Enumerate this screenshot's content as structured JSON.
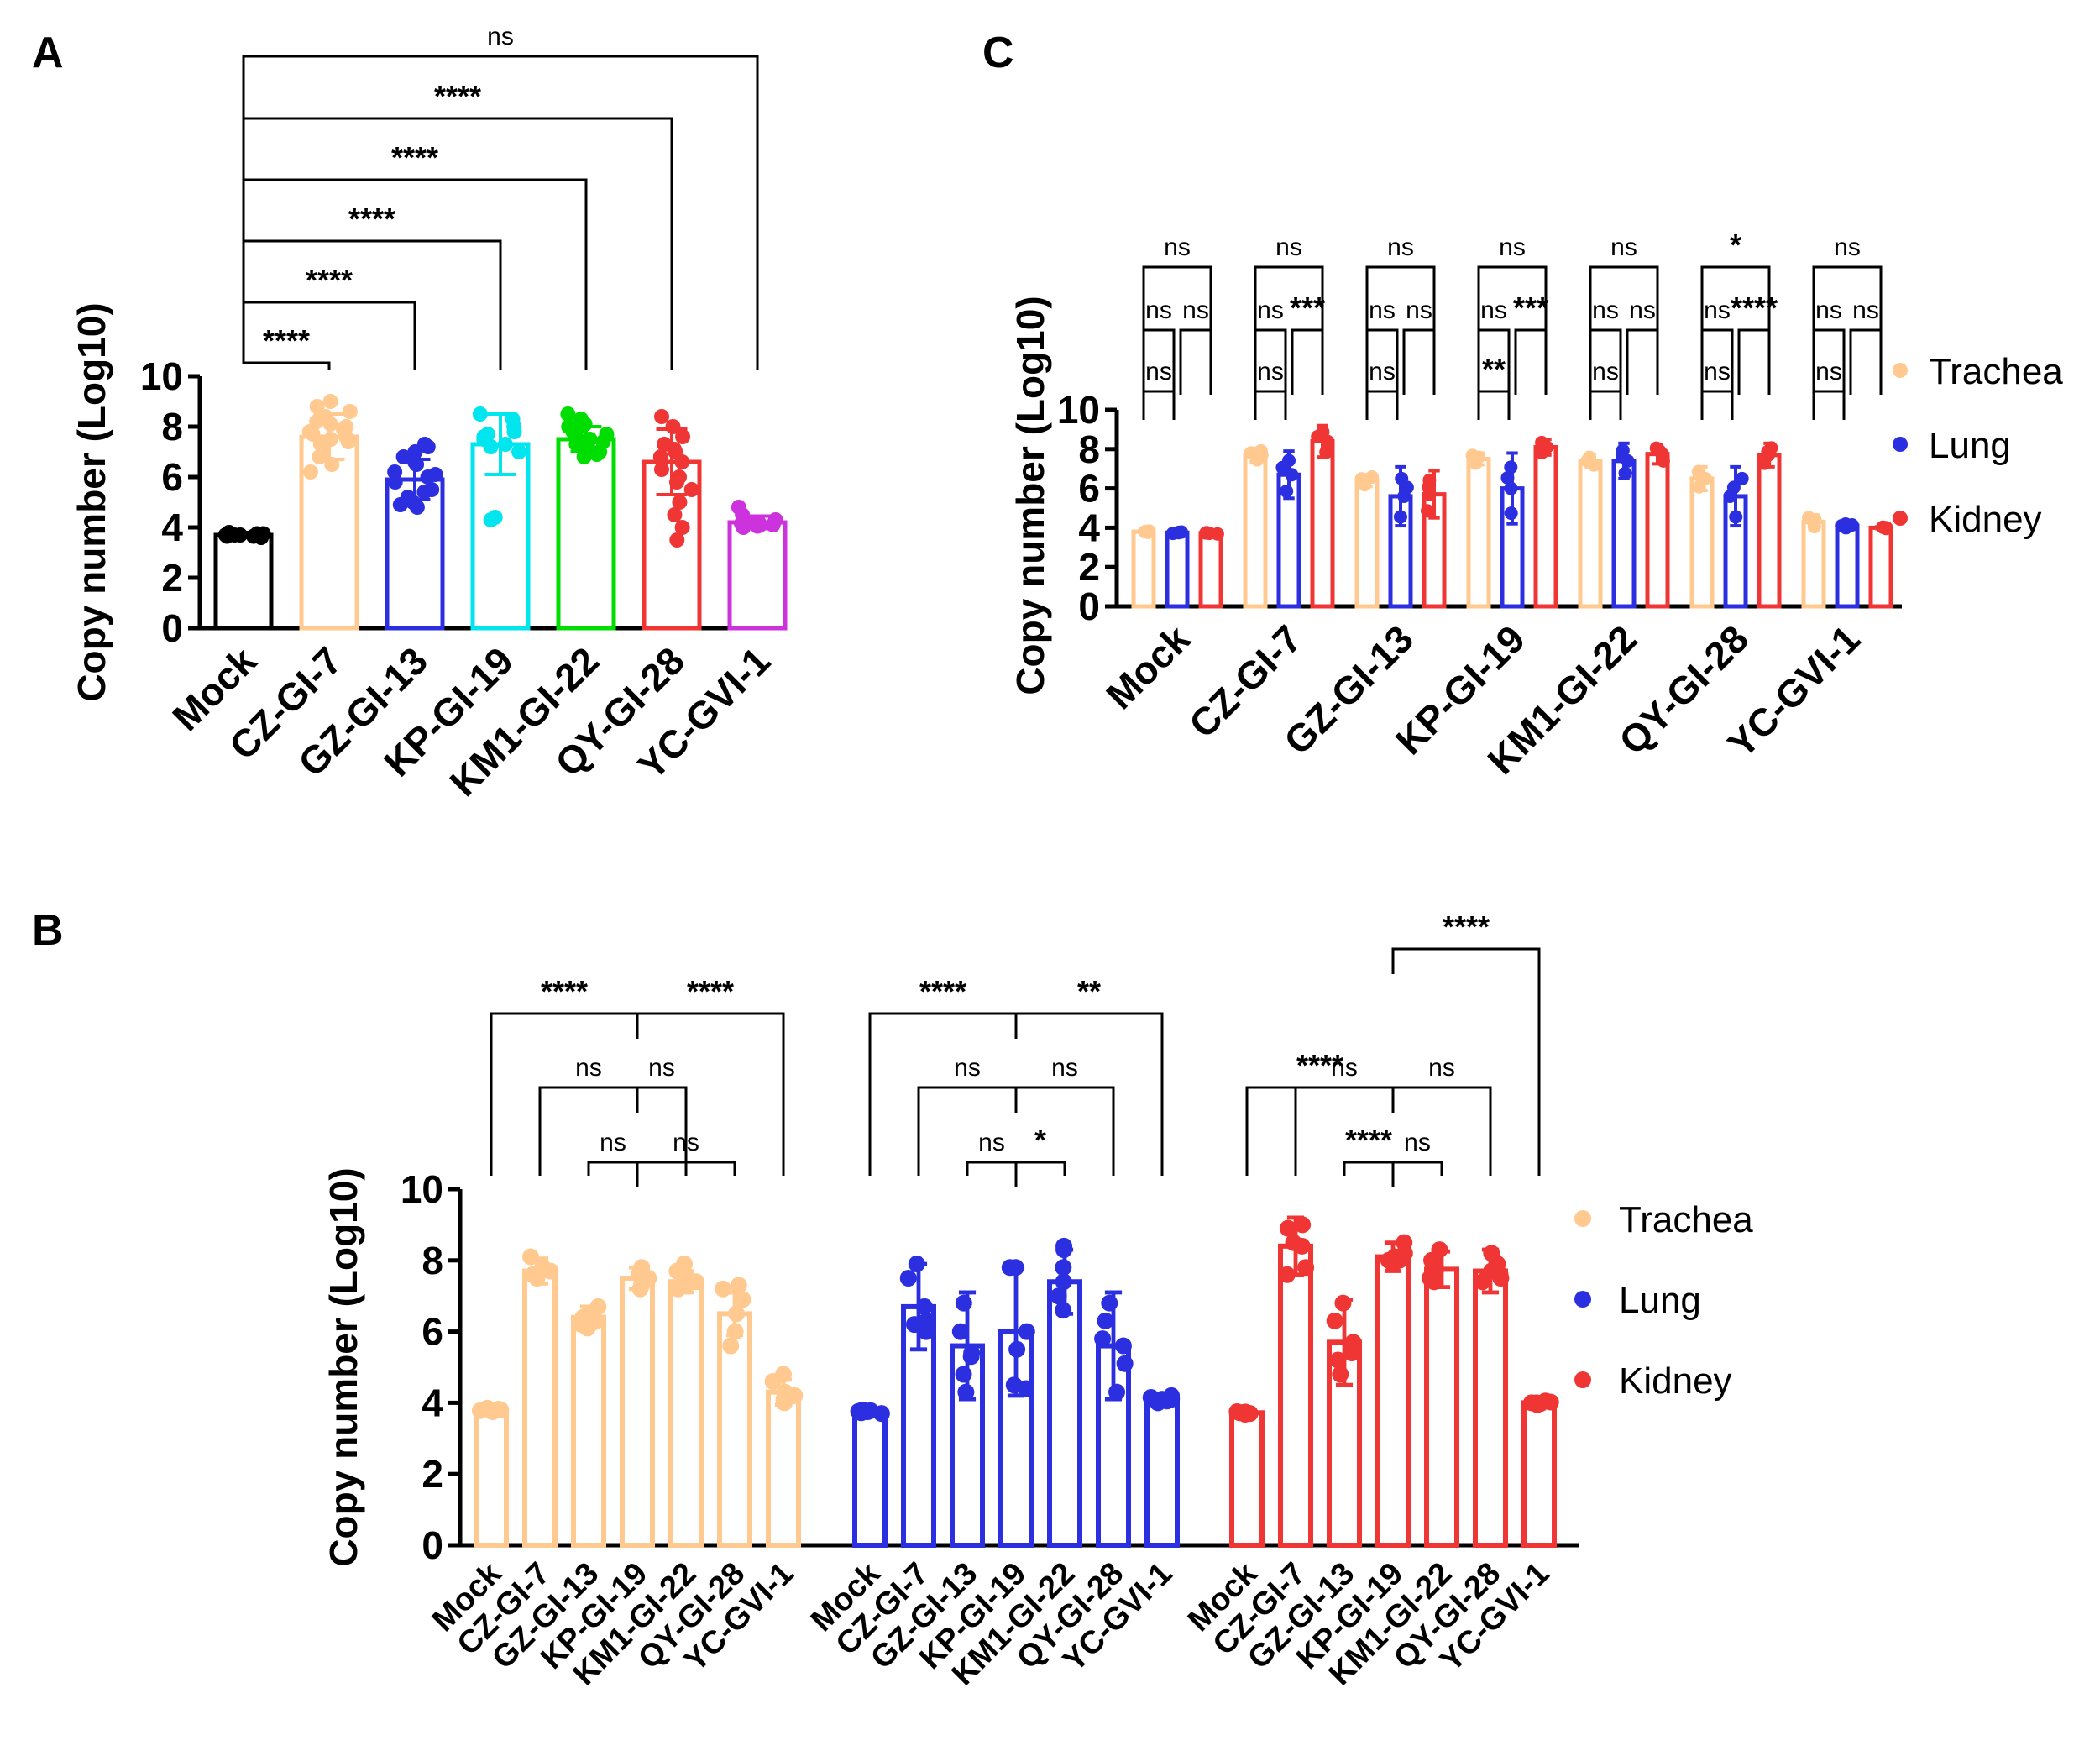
{
  "colors": {
    "Mock": "#000000",
    "CZ-GI-7": "#FFC990",
    "GZ-GI-13": "#2B2FE0",
    "KP-GI-19": "#00E5EE",
    "KM1-GI-22": "#00DD00",
    "QY-GI-28": "#F03535",
    "YC-GVI-1": "#CC33DD",
    "Trachea": "#FFC990",
    "Lung": "#2B2FE0",
    "Kidney": "#F03535"
  },
  "chart_data": [
    {
      "panel": "A",
      "type": "bar",
      "ylabel": "Copy number (Log10)",
      "ylim": [
        0,
        10
      ],
      "yticks": [
        0,
        2,
        4,
        6,
        8,
        10
      ],
      "categories": [
        "Mock",
        "CZ-GI-7",
        "GZ-GI-13",
        "KP-GI-19",
        "KM1-GI-22",
        "QY-GI-28",
        "YC-GVI-1"
      ],
      "values": [
        3.7,
        7.6,
        5.9,
        7.3,
        7.5,
        6.6,
        4.2
      ],
      "errors": [
        0.1,
        0.9,
        0.8,
        1.2,
        0.5,
        1.3,
        0.25
      ],
      "points": [
        [
          3.6,
          3.65,
          3.7,
          3.7,
          3.75,
          3.8,
          3.7,
          3.65,
          3.75,
          3.7
        ],
        [
          6.2,
          6.5,
          7.0,
          7.3,
          7.5,
          7.7,
          7.8,
          8.0,
          8.2,
          8.4,
          8.6,
          8.8,
          9.0,
          7.4,
          7.6,
          6.8,
          8.1,
          7.9
        ],
        [
          4.8,
          5.0,
          5.2,
          5.5,
          5.8,
          6.0,
          6.2,
          6.5,
          6.8,
          7.0,
          7.2,
          5.4,
          6.1,
          6.6,
          7.3,
          4.9
        ],
        [
          4.4,
          4.3,
          7.0,
          7.3,
          7.5,
          7.7,
          8.0,
          8.3,
          8.5,
          7.6,
          7.2,
          7.8
        ],
        [
          6.8,
          7.0,
          7.2,
          7.4,
          7.6,
          7.8,
          8.0,
          8.3,
          8.5,
          7.5,
          7.3,
          7.7,
          7.9,
          8.1,
          7.1,
          6.9
        ],
        [
          3.5,
          4.0,
          4.5,
          5.0,
          5.5,
          6.0,
          6.3,
          6.6,
          7.0,
          7.3,
          7.6,
          8.0,
          8.4,
          6.8,
          7.1,
          5.8
        ],
        [
          4.0,
          4.05,
          4.1,
          4.15,
          4.2,
          4.3,
          4.5,
          4.8,
          4.1,
          4.2
        ]
      ],
      "comparisons": [
        {
          "from": 0,
          "to": 1,
          "label": "****"
        },
        {
          "from": 0,
          "to": 2,
          "label": "****"
        },
        {
          "from": 0,
          "to": 3,
          "label": "****"
        },
        {
          "from": 0,
          "to": 4,
          "label": "****"
        },
        {
          "from": 0,
          "to": 5,
          "label": "****"
        },
        {
          "from": 0,
          "to": 6,
          "label": "ns"
        }
      ]
    },
    {
      "panel": "B",
      "type": "bar",
      "ylabel": "Copy number (Log10)",
      "ylim": [
        0,
        10
      ],
      "yticks": [
        0,
        2,
        4,
        6,
        8,
        10
      ],
      "categories": [
        "Mock",
        "CZ-GI-7",
        "GZ-GI-13",
        "KP-GI-19",
        "KM1-GI-22",
        "QY-GI-28",
        "YC-GVI-1"
      ],
      "series": [
        {
          "name": "Trachea",
          "values": [
            3.8,
            7.7,
            6.4,
            7.5,
            7.4,
            6.5,
            4.3
          ],
          "errors": [
            0.05,
            0.35,
            0.3,
            0.3,
            0.3,
            0.6,
            0.35
          ],
          "points": [
            [
              3.75,
              3.8,
              3.85,
              3.8,
              3.78,
              3.82
            ],
            [
              7.5,
              7.6,
              7.7,
              7.8,
              8.1,
              7.6
            ],
            [
              6.1,
              6.3,
              6.5,
              6.7,
              6.4,
              6.2
            ],
            [
              7.2,
              7.4,
              7.6,
              7.8,
              7.5,
              7.3
            ],
            [
              7.2,
              7.3,
              7.5,
              7.7,
              7.9,
              7.4
            ],
            [
              5.6,
              6.0,
              6.5,
              6.9,
              7.2,
              7.3
            ],
            [
              4.0,
              4.1,
              4.3,
              4.6,
              4.8,
              4.2
            ]
          ]
        },
        {
          "name": "Lung",
          "values": [
            3.75,
            6.7,
            5.6,
            6.0,
            7.4,
            5.6,
            4.1
          ],
          "errors": [
            0.05,
            1.2,
            1.5,
            1.8,
            0.9,
            1.5,
            0.15
          ],
          "points": [
            [
              3.7,
              3.75,
              3.8,
              3.72,
              3.76,
              3.78
            ],
            [
              6.0,
              6.3,
              6.7,
              7.5,
              7.9,
              6.2
            ],
            [
              4.3,
              4.8,
              5.3,
              6.0,
              6.8,
              5.4
            ],
            [
              4.4,
              4.5,
              6.0,
              7.8,
              7.8,
              5.5
            ],
            [
              6.6,
              7.0,
              7.4,
              7.8,
              8.4,
              8.3
            ],
            [
              4.3,
              5.1,
              5.6,
              6.3,
              6.8,
              5.8
            ],
            [
              4.0,
              4.05,
              4.1,
              4.15,
              4.2,
              4.1
            ]
          ]
        },
        {
          "name": "Kidney",
          "values": [
            3.72,
            8.4,
            5.7,
            8.1,
            7.75,
            7.7,
            4.0
          ],
          "errors": [
            0.05,
            0.8,
            1.2,
            0.4,
            0.5,
            0.6,
            0.05
          ],
          "points": [
            [
              3.68,
              3.7,
              3.75,
              3.72,
              3.74,
              3.7
            ],
            [
              7.6,
              7.8,
              8.5,
              8.9,
              9.0,
              8.4
            ],
            [
              4.8,
              5.2,
              5.7,
              6.3,
              6.8,
              5.4
            ],
            [
              7.9,
              8.0,
              8.1,
              8.2,
              8.5,
              8.0
            ],
            [
              7.5,
              7.6,
              7.8,
              8.0,
              8.3,
              7.4
            ],
            [
              7.4,
              7.6,
              7.7,
              7.9,
              8.2,
              7.5
            ],
            [
              3.95,
              4.0,
              4.05,
              4.0,
              3.98,
              4.02
            ]
          ]
        }
      ],
      "comparisons": [
        [
          {
            "from": 0,
            "to": 3,
            "label": "****"
          },
          {
            "from": 3,
            "to": 6,
            "label": "****"
          },
          {
            "from": 1,
            "to": 3,
            "label": "ns"
          },
          {
            "from": 3,
            "to": 4,
            "label": "ns"
          },
          {
            "from": 2,
            "to": 3,
            "label": "ns"
          },
          {
            "from": 3,
            "to": 5,
            "label": "ns"
          }
        ],
        [
          {
            "from": 0,
            "to": 3,
            "label": "****"
          },
          {
            "from": 3,
            "to": 6,
            "label": "**"
          },
          {
            "from": 1,
            "to": 3,
            "label": "ns"
          },
          {
            "from": 3,
            "to": 5,
            "label": "ns"
          },
          {
            "from": 2,
            "to": 3,
            "label": "ns"
          },
          {
            "from": 3,
            "to": 4,
            "label": "*"
          }
        ],
        [
          {
            "from": 0,
            "to": 3,
            "label": "****"
          },
          {
            "from": 3,
            "to": 6,
            "label": "****"
          },
          {
            "from": 1,
            "to": 3,
            "label": "ns"
          },
          {
            "from": 3,
            "to": 5,
            "label": "ns"
          },
          {
            "from": 3,
            "to": 4,
            "label": "ns"
          },
          {
            "from": 2,
            "to": 3,
            "label": "****"
          }
        ]
      ],
      "legend": [
        "Trachea",
        "Lung",
        "Kidney"
      ]
    },
    {
      "panel": "C",
      "type": "bar",
      "ylabel": "Copy number (Log10)",
      "ylim": [
        0,
        10
      ],
      "yticks": [
        0,
        2,
        4,
        6,
        8,
        10
      ],
      "categories": [
        "Mock",
        "CZ-GI-7",
        "GZ-GI-13",
        "KP-GI-19",
        "KM1-GI-22",
        "QY-GI-28",
        "YC-GVI-1"
      ],
      "series": [
        {
          "name": "Trachea",
          "values": [
            3.8,
            7.7,
            6.4,
            7.5,
            7.4,
            6.5,
            4.3
          ],
          "errors": [
            0.05,
            0.35,
            0.3,
            0.3,
            0.3,
            0.6,
            0.35
          ]
        },
        {
          "name": "Lung",
          "values": [
            3.75,
            6.7,
            5.6,
            6.0,
            7.4,
            5.6,
            4.1
          ],
          "errors": [
            0.05,
            1.2,
            1.5,
            1.8,
            0.9,
            1.5,
            0.15
          ]
        },
        {
          "name": "Kidney",
          "values": [
            3.72,
            8.4,
            5.7,
            8.1,
            7.75,
            7.7,
            4.0
          ],
          "errors": [
            0.05,
            0.8,
            1.2,
            0.4,
            0.5,
            0.6,
            0.05
          ]
        }
      ],
      "comparisons": [
        [
          "ns",
          "ns",
          "ns",
          "ns",
          "ns",
          "*",
          "ns"
        ],
        [
          "ns",
          "ns",
          "ns",
          "ns",
          "ns",
          "ns",
          "ns"
        ],
        [
          "ns",
          "***",
          "ns",
          "***",
          "ns",
          "****",
          "ns"
        ],
        [
          "ns",
          "ns",
          "ns",
          "**",
          "ns",
          "ns",
          "ns"
        ]
      ],
      "legend": [
        "Trachea",
        "Lung",
        "Kidney"
      ]
    }
  ]
}
